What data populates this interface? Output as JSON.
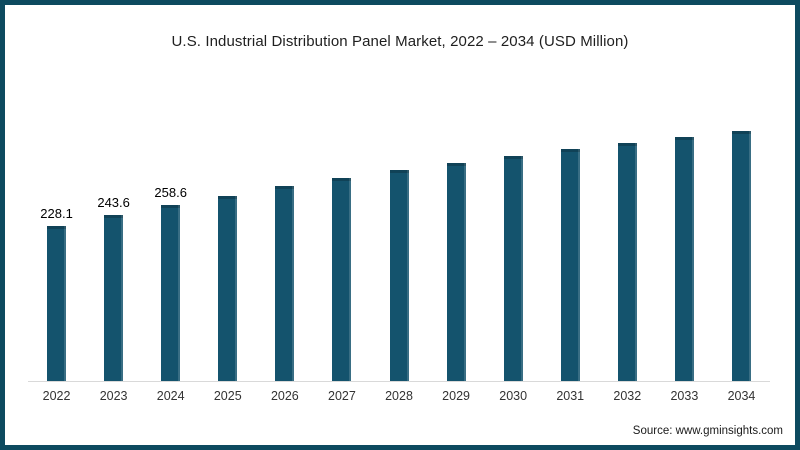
{
  "frame": {
    "border_color": "#0d4a5f",
    "background": "#ffffff"
  },
  "chart_data": {
    "type": "bar",
    "title": "U.S. Industrial Distribution Panel Market, 2022 – 2034 (USD Million)",
    "xlabel": "",
    "ylabel": "",
    "legend": "none",
    "gridlines": false,
    "y_axis_shown": false,
    "baseline_axis_color": "#d9d9d9",
    "bar_color": "#14536d",
    "ylim": [
      0,
      385
    ],
    "categories": [
      "2022",
      "2023",
      "2024",
      "2025",
      "2026",
      "2027",
      "2028",
      "2029",
      "2030",
      "2031",
      "2032",
      "2033",
      "2034"
    ],
    "values": [
      228.1,
      243.6,
      258.6,
      272.5,
      286.3,
      298.5,
      310.4,
      321.2,
      331.5,
      341.1,
      350.5,
      358.7,
      367.6
    ],
    "data_labels": [
      "228.1",
      "243.6",
      "258.6",
      "",
      "",
      "",
      "",
      "",
      "",
      "",
      "",
      "",
      ""
    ]
  },
  "source": {
    "text": "Source: www.gminsights.com"
  }
}
